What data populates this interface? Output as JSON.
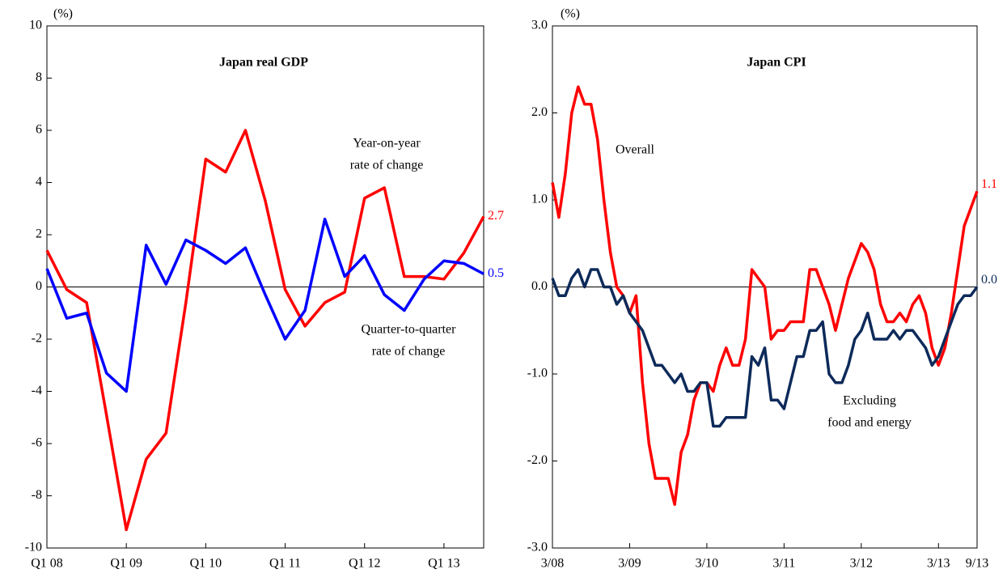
{
  "chart_data": [
    {
      "type": "line",
      "title": "Japan real GDP",
      "unit": "(%)",
      "categories": [
        "Q1 08",
        null,
        null,
        null,
        "Q1 09",
        null,
        null,
        null,
        "Q1 10",
        null,
        null,
        null,
        "Q1 11",
        null,
        null,
        null,
        "Q1 12",
        null,
        null,
        null,
        "Q1 13",
        null,
        null
      ],
      "ylim": [
        -10,
        10
      ],
      "yticks": [
        -10,
        -8,
        -6,
        -4,
        -2,
        0,
        2,
        4,
        6,
        8,
        10
      ],
      "series": [
        {
          "name": [
            "Year-on-year",
            "rate of change"
          ],
          "color": "#ff0000",
          "values": [
            1.4,
            -0.1,
            -0.6,
            -4.9,
            -9.3,
            -6.6,
            -5.6,
            -0.6,
            4.9,
            4.4,
            6.0,
            3.3,
            -0.1,
            -1.5,
            -0.6,
            -0.2,
            3.4,
            3.8,
            0.4,
            0.4,
            0.3,
            1.3,
            2.7
          ]
        },
        {
          "name": [
            "Quarter-to-quarter",
            "rate of change"
          ],
          "color": "#0000ff",
          "values": [
            0.7,
            -1.2,
            -1.0,
            -3.3,
            -4.0,
            1.6,
            0.1,
            1.8,
            1.4,
            0.9,
            1.5,
            -0.3,
            -2.0,
            -0.9,
            2.6,
            0.4,
            1.2,
            -0.3,
            -0.9,
            0.3,
            1.0,
            0.9,
            0.5
          ]
        }
      ]
    },
    {
      "type": "line",
      "title": "Japan CPI",
      "unit": "(%)",
      "categories": [
        "3/08",
        null,
        null,
        null,
        null,
        null,
        null,
        null,
        null,
        null,
        null,
        null,
        "3/09",
        null,
        null,
        null,
        null,
        null,
        null,
        null,
        null,
        null,
        null,
        null,
        "3/10",
        null,
        null,
        null,
        null,
        null,
        null,
        null,
        null,
        null,
        null,
        null,
        "3/11",
        null,
        null,
        null,
        null,
        null,
        null,
        null,
        null,
        null,
        null,
        null,
        "3/12",
        null,
        null,
        null,
        null,
        null,
        null,
        null,
        null,
        null,
        null,
        null,
        "3/13",
        null,
        null,
        null,
        null,
        null,
        "9/13"
      ],
      "ylim": [
        -3,
        3
      ],
      "yticks": [
        {
          "value": -3,
          "label": "-3.0"
        },
        {
          "value": -2,
          "label": "-2.0"
        },
        {
          "value": -1,
          "label": "-1.0"
        },
        {
          "value": 0,
          "label": "0.0"
        },
        {
          "value": 1,
          "label": "1.0"
        },
        {
          "value": 2,
          "label": "2.0"
        },
        {
          "value": 3,
          "label": "3.0"
        }
      ],
      "series": [
        {
          "name": [
            "Overall"
          ],
          "color": "#ff0000",
          "values": [
            1.2,
            0.8,
            1.3,
            2.0,
            2.3,
            2.1,
            2.1,
            1.7,
            1.0,
            0.4,
            0.0,
            -0.1,
            -0.3,
            -0.1,
            -1.1,
            -1.8,
            -2.2,
            -2.2,
            -2.2,
            -2.5,
            -1.9,
            -1.7,
            -1.3,
            -1.1,
            -1.1,
            -1.2,
            -0.9,
            -0.7,
            -0.9,
            -0.9,
            -0.6,
            0.2,
            0.1,
            0.0,
            -0.6,
            -0.5,
            -0.5,
            -0.4,
            -0.4,
            -0.4,
            0.2,
            0.2,
            0.0,
            -0.2,
            -0.5,
            -0.2,
            0.1,
            0.3,
            0.5,
            0.4,
            0.2,
            -0.2,
            -0.4,
            -0.4,
            -0.3,
            -0.4,
            -0.2,
            -0.1,
            -0.3,
            -0.7,
            -0.9,
            -0.7,
            -0.3,
            0.2,
            0.7,
            0.9,
            1.1
          ],
          "value_labels": [
            null,
            null,
            null,
            null,
            null,
            null,
            null,
            null,
            null,
            null,
            null,
            null,
            null,
            null,
            null,
            null,
            null,
            null,
            null,
            null,
            null,
            null,
            null,
            null,
            null,
            null,
            null,
            null,
            null,
            null,
            null,
            null,
            null,
            null,
            null,
            null,
            null,
            null,
            null,
            null,
            null,
            null,
            null,
            null,
            null,
            null,
            null,
            null,
            null,
            null,
            null,
            null,
            null,
            null,
            null,
            null,
            null,
            null,
            null,
            null,
            null,
            null,
            null,
            null,
            null,
            null,
            "1.1"
          ]
        },
        {
          "name": [
            "Excluding",
            "food and energy"
          ],
          "color": "#0d2a5a",
          "values": [
            0.1,
            -0.1,
            -0.1,
            0.1,
            0.2,
            0.0,
            0.2,
            0.2,
            0.0,
            0.0,
            -0.2,
            -0.1,
            -0.3,
            -0.4,
            -0.5,
            -0.7,
            -0.9,
            -0.9,
            -1.0,
            -1.1,
            -1.0,
            -1.2,
            -1.2,
            -1.1,
            -1.1,
            -1.6,
            -1.6,
            -1.5,
            -1.5,
            -1.5,
            -1.5,
            -0.8,
            -0.9,
            -0.7,
            -1.3,
            -1.3,
            -1.4,
            -1.1,
            -0.8,
            -0.8,
            -0.5,
            -0.5,
            -0.4,
            -1.0,
            -1.1,
            -1.1,
            -0.9,
            -0.6,
            -0.5,
            -0.3,
            -0.6,
            -0.6,
            -0.6,
            -0.5,
            -0.6,
            -0.5,
            -0.5,
            -0.6,
            -0.7,
            -0.9,
            -0.8,
            -0.6,
            -0.4,
            -0.2,
            -0.1,
            -0.1,
            0.0
          ],
          "value_labels": [
            null,
            null,
            null,
            null,
            null,
            null,
            null,
            null,
            null,
            null,
            null,
            null,
            null,
            null,
            null,
            null,
            null,
            null,
            null,
            null,
            null,
            null,
            null,
            null,
            null,
            null,
            null,
            null,
            null,
            null,
            null,
            null,
            null,
            null,
            null,
            null,
            null,
            null,
            null,
            null,
            null,
            null,
            null,
            null,
            null,
            null,
            null,
            null,
            null,
            null,
            null,
            null,
            null,
            null,
            null,
            null,
            null,
            null,
            null,
            null,
            null,
            null,
            null,
            null,
            null,
            null,
            "0.0"
          ]
        }
      ]
    }
  ]
}
